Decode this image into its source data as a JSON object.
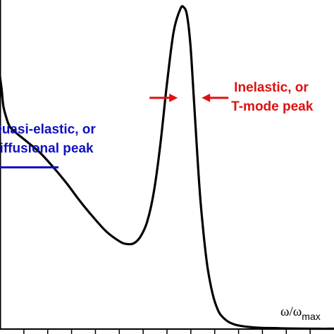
{
  "chart_data": {
    "type": "line",
    "xlabel": {
      "main": "ω/ω",
      "sub": "max"
    },
    "ylabel": "",
    "xlim": [
      0,
      1.0
    ],
    "ylim": [
      0,
      1.0
    ],
    "grid": false,
    "tick_count": 14,
    "series": [
      {
        "color": "#000000",
        "x": [
          0.0,
          0.005,
          0.01,
          0.02,
          0.03,
          0.05,
          0.08,
          0.12,
          0.16,
          0.2,
          0.24,
          0.28,
          0.32,
          0.36,
          0.38,
          0.4,
          0.42,
          0.44,
          0.46,
          0.48,
          0.5,
          0.52,
          0.54,
          0.55,
          0.56,
          0.57,
          0.58,
          0.59,
          0.6,
          0.61,
          0.62,
          0.63,
          0.64,
          0.65,
          0.66,
          0.68,
          0.7,
          0.72,
          0.75,
          0.78,
          0.82,
          0.86,
          0.9,
          0.95,
          1.0
        ],
        "y": [
          0.78,
          0.74,
          0.69,
          0.65,
          0.625,
          0.605,
          0.58,
          0.545,
          0.5,
          0.45,
          0.395,
          0.345,
          0.3,
          0.27,
          0.263,
          0.265,
          0.285,
          0.33,
          0.42,
          0.57,
          0.76,
          0.92,
          0.99,
          0.995,
          0.97,
          0.88,
          0.72,
          0.55,
          0.4,
          0.29,
          0.2,
          0.14,
          0.095,
          0.065,
          0.045,
          0.025,
          0.015,
          0.01,
          0.006,
          0.004,
          0.003,
          0.002,
          0.0015,
          0.001,
          0.001
        ]
      }
    ],
    "annotations": [
      {
        "lines": [
          "Quasi-elastic, or",
          "diffusional peak"
        ],
        "color": "#1010c0",
        "arrow": "left",
        "x_data": 0.175,
        "y_data": 0.5
      },
      {
        "lines": [
          "Inelastic, or",
          "T-mode peak"
        ],
        "color": "#e01010",
        "arrow": "pair",
        "x_data": 0.57,
        "y_data": 0.715
      }
    ]
  }
}
